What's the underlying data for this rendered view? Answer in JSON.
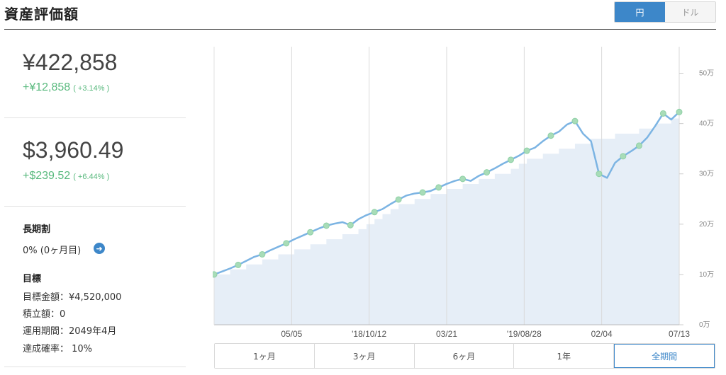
{
  "header": {
    "title": "資産評価額"
  },
  "currency_toggle": {
    "options": [
      "円",
      "ドル"
    ],
    "active_index": 0
  },
  "summary": {
    "yen": {
      "amount": "¥422,858",
      "change": "+¥12,858",
      "change_pct": "( +3.14% )"
    },
    "usd": {
      "amount": "$3,960.49",
      "change": "+$239.52",
      "change_pct": "( +6.44% )"
    }
  },
  "long_term": {
    "heading": "長期割",
    "value": "0% (0ヶ月目)"
  },
  "goal": {
    "heading": "目標",
    "target_amount": "目標金額：¥4,520,000",
    "contribution": "積立額：0",
    "period": "運用期間：2049年4月",
    "probability": "達成確率： 10%"
  },
  "range_tabs": {
    "items": [
      "1ヶ月",
      "3ヶ月",
      "6ヶ月",
      "1年",
      "全期間"
    ],
    "active_index": 4
  },
  "colors": {
    "accent": "#3d87c9",
    "line": "#7cb4e3",
    "fill": "#e6eef7",
    "positive": "#58b97d",
    "marker": "#a8dcb8"
  },
  "chart_data": {
    "type": "area",
    "y_tick_labels": [
      "0万",
      "10万",
      "20万",
      "30万",
      "40万",
      "50万"
    ],
    "y_ticks": [
      0,
      100000,
      200000,
      300000,
      400000,
      500000
    ],
    "ylim": [
      0,
      550000
    ],
    "x_tick_labels": [
      "05/05",
      "'18/10/12",
      "03/21",
      "'19/08/28",
      "02/04",
      "07/13"
    ],
    "x_tick_positions": [
      0.1667,
      0.3333,
      0.5,
      0.6667,
      0.8333,
      1.0
    ],
    "grid": true,
    "series": [
      {
        "values": [
          100000,
          106000,
          112000,
          119000,
          127000,
          135000,
          140000,
          148000,
          155000,
          162000,
          170000,
          177000,
          184000,
          191000,
          197000,
          201000,
          204000,
          198000,
          210000,
          218000,
          224000,
          230000,
          240000,
          249000,
          257000,
          261000,
          263000,
          266000,
          273000,
          280000,
          286000,
          290000,
          286000,
          296000,
          303000,
          311000,
          320000,
          328000,
          336000,
          346000,
          352000,
          365000,
          376000,
          384000,
          398000,
          405000,
          380000,
          365000,
          300000,
          292000,
          322000,
          335000,
          345000,
          356000,
          372000,
          395000,
          420000,
          408000,
          423000
        ]
      },
      {
        "values": [
          100000,
          100000,
          110000,
          110000,
          120000,
          120000,
          130000,
          130000,
          140000,
          140000,
          150000,
          150000,
          160000,
          160000,
          170000,
          170000,
          180000,
          180000,
          190000,
          200000,
          210000,
          220000,
          230000,
          240000,
          240000,
          250000,
          250000,
          260000,
          260000,
          270000,
          270000,
          280000,
          280000,
          290000,
          290000,
          300000,
          300000,
          310000,
          320000,
          330000,
          330000,
          340000,
          340000,
          350000,
          350000,
          360000,
          360000,
          370000,
          370000,
          370000,
          380000,
          380000,
          380000,
          390000,
          390000,
          400000,
          400000,
          410000,
          410000
        ]
      }
    ],
    "markers": [
      0,
      3,
      6,
      9,
      12,
      14,
      17,
      20,
      23,
      26,
      28,
      31,
      34,
      37,
      39,
      42,
      45,
      48,
      51,
      53,
      56,
      58
    ]
  }
}
